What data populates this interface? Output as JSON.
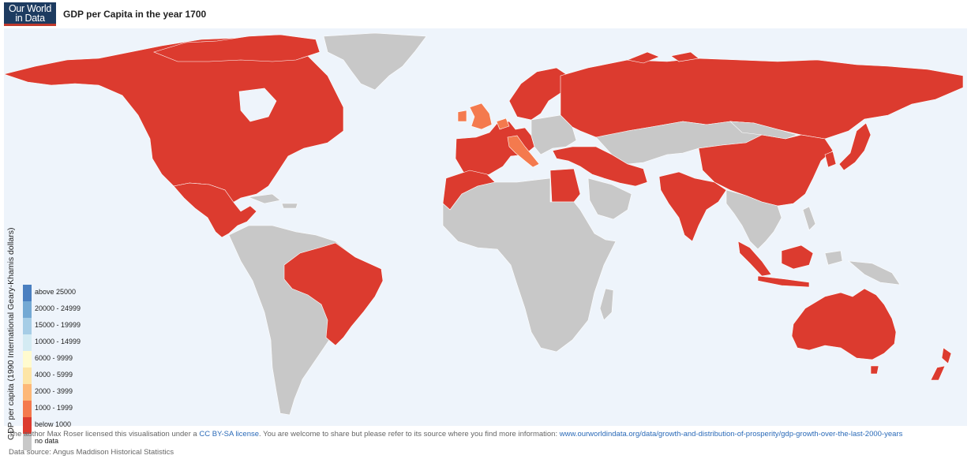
{
  "header": {
    "logo_line1": "Our World",
    "logo_line2": "in Data",
    "title": "GDP per Capita in the year 1700"
  },
  "legend": {
    "title": "GDP per capita (1990 International Geary-Khamis dollars)",
    "items": [
      {
        "label": "above 25000",
        "color": "#4a7fc0"
      },
      {
        "label": "20000 - 24999",
        "color": "#74a9d4"
      },
      {
        "label": "15000 - 19999",
        "color": "#a6cde6"
      },
      {
        "label": "10000 - 14999",
        "color": "#d4ebf3"
      },
      {
        "label": "6000 - 9999",
        "color": "#fffbcf"
      },
      {
        "label": "4000 - 5999",
        "color": "#fde5a6"
      },
      {
        "label": "2000 - 3999",
        "color": "#fdb878"
      },
      {
        "label": "1000 - 1999",
        "color": "#f47a4e"
      },
      {
        "label": "below 1000",
        "color": "#dc3b2f"
      },
      {
        "label": "no data",
        "color": "#c8c8c8"
      }
    ]
  },
  "map": {
    "ocean_color": "#eef4fb",
    "regions": {
      "north_america": "below 1000",
      "central_america": "below 1000",
      "brazil": "below 1000",
      "south_america_rest": "no data",
      "greenland": "no data",
      "iberia_france_central_europe": "below 1000",
      "britain": "1000 - 1999",
      "netherlands": "1000 - 1999",
      "italy": "1000 - 1999",
      "eastern_europe": "no data",
      "russia": "below 1000",
      "turkey_iran": "below 1000",
      "egypt": "below 1000",
      "maghreb": "below 1000",
      "africa_rest": "no data",
      "china": "below 1000",
      "mongolia_kazakhstan": "no data",
      "india": "below 1000",
      "japan": "below 1000",
      "southeast_asia_mainland": "no data",
      "indonesia": "below 1000",
      "philippines_png": "no data",
      "australia": "below 1000",
      "new_zealand": "below 1000"
    }
  },
  "footer": {
    "text_before": "The author Max Roser licensed this visualisation under a ",
    "license_link": "CC BY-SA license",
    "text_middle": ". You are welcome to share but please refer to its source where you find more information: ",
    "source_link": "www.ourworldindata.org/data/growth-and-distribution-of-prosperity/gdp-growth-over-the-last-2000-years",
    "data_source": "Data source: Angus Maddison Historical Statistics"
  }
}
